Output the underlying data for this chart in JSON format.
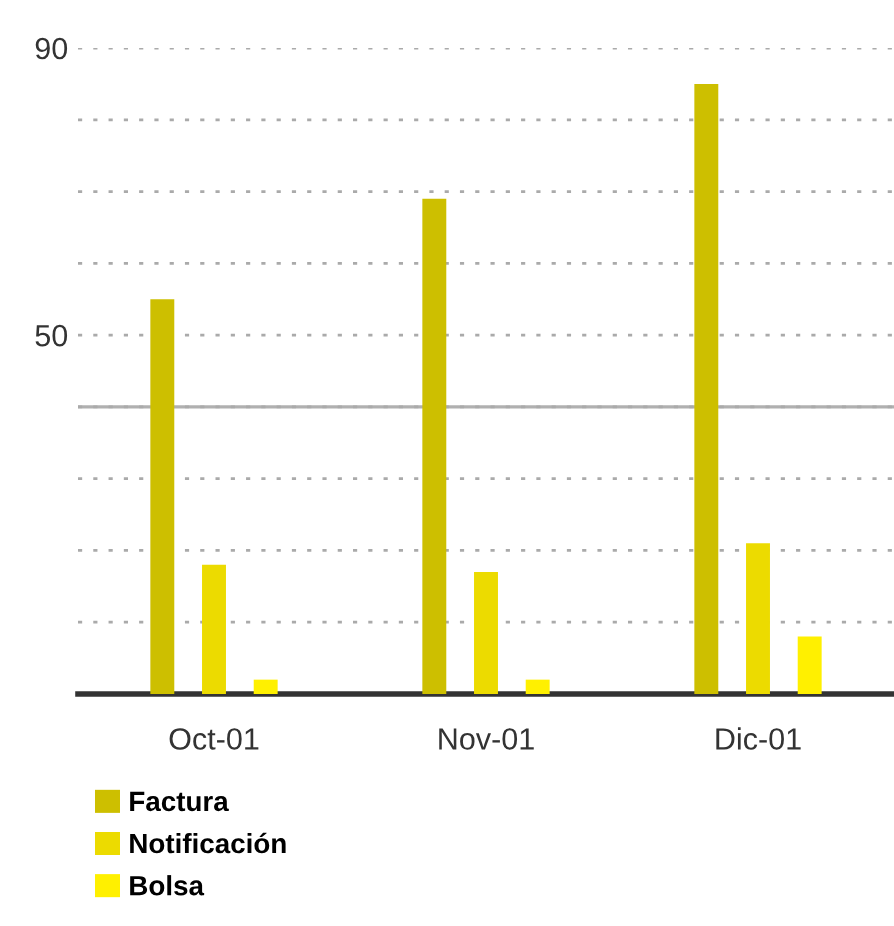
{
  "chart_data": {
    "type": "bar",
    "categories": [
      "Oct-01",
      "Nov-01",
      "Dic-01"
    ],
    "series": [
      {
        "name": "Factura",
        "color": "#cdbf00",
        "values": [
          55,
          69,
          85
        ]
      },
      {
        "name": "Notificación",
        "color": "#ecdb00",
        "values": [
          18,
          17,
          21
        ]
      },
      {
        "name": "Bolsa",
        "color": "#fff000",
        "values": [
          2,
          2,
          8
        ]
      }
    ],
    "ylim": [
      0,
      90
    ],
    "yticks": [
      {
        "value": 0,
        "label": null
      },
      {
        "value": 10,
        "label": null
      },
      {
        "value": 20,
        "label": null
      },
      {
        "value": 30,
        "label": null
      },
      {
        "value": 40,
        "label": null
      },
      50,
      {
        "value": 60,
        "label": null
      },
      {
        "value": 70,
        "label": null
      },
      {
        "value": 80,
        "label": null
      },
      90
    ],
    "ref_lines": [
      {
        "axis": "y",
        "value": 40,
        "color": "#b0b0b0"
      }
    ],
    "grid": "y",
    "legend": "bottom left"
  }
}
